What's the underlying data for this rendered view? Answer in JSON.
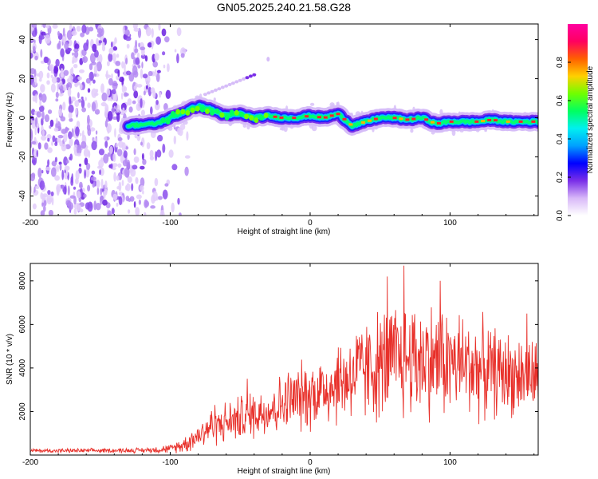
{
  "title": "GN05.2025.240.21.58.G28",
  "chart_data": [
    {
      "type": "heatmap",
      "xlabel": "Height of straight line (km)",
      "ylabel": "Frequency (Hz)",
      "xlim": [
        -200,
        163
      ],
      "ylim": [
        -50,
        48
      ],
      "xticks": [
        -200,
        -100,
        0,
        100
      ],
      "yticks": [
        -40,
        -20,
        0,
        20,
        40
      ],
      "colorbar": {
        "label": "Normalized spectral amplitude",
        "range": [
          0,
          1
        ],
        "ticks": [
          0.0,
          0.2,
          0.4,
          0.6,
          0.8
        ],
        "colors": [
          "#ffffff",
          "#d8b8f8",
          "#7a2ee8",
          "#0000ff",
          "#00a0ff",
          "#00f0f0",
          "#00ff60",
          "#70ff00",
          "#ffd000",
          "#ff6000",
          "#ff0060",
          "#ff00a0"
        ]
      },
      "ridge": {
        "description_points_x": [
          -130,
          -110,
          -100,
          -90,
          -80,
          -70,
          -60,
          -50,
          -40,
          -30,
          -20,
          -10,
          0,
          10,
          20,
          30,
          40,
          50,
          60,
          70,
          80,
          90,
          100,
          110,
          120,
          130,
          140,
          150,
          163
        ],
        "description_points_y": [
          -4,
          -3,
          0,
          3,
          6,
          4,
          1,
          2,
          0,
          1,
          0,
          0,
          1,
          0,
          2,
          -4,
          -2,
          0,
          0,
          -1,
          0,
          -3,
          -2,
          -2,
          -2,
          -1,
          -2,
          -2,
          -2
        ],
        "noise_region_x": [
          -200,
          -105
        ],
        "secondary_line": {
          "x": [
            -75,
            -40
          ],
          "y": [
            12,
            22
          ]
        }
      }
    },
    {
      "type": "line",
      "xlabel": "Height of straight line (km)",
      "ylabel": "SNR (10 * v/v)",
      "xlim": [
        -200,
        163
      ],
      "ylim": [
        0,
        8800
      ],
      "xticks": [
        -200,
        -100,
        0,
        100
      ],
      "yticks": [
        2000,
        4000,
        6000,
        8000
      ],
      "color": "#e8302a",
      "envelope": {
        "x": [
          -200,
          -160,
          -120,
          -100,
          -90,
          -80,
          -72,
          -65,
          -55,
          -45,
          -35,
          -25,
          -15,
          -5,
          5,
          15,
          25,
          35,
          45,
          55,
          65,
          75,
          85,
          95,
          105,
          115,
          125,
          135,
          145,
          155,
          163
        ],
        "mean": [
          200,
          200,
          220,
          280,
          500,
          900,
          1300,
          1400,
          1600,
          1800,
          2000,
          2200,
          2500,
          2700,
          2900,
          3200,
          3500,
          3800,
          4000,
          4200,
          4400,
          4500,
          4400,
          4300,
          4200,
          4100,
          3900,
          3800,
          3700,
          3600,
          3600
        ],
        "spread": [
          100,
          100,
          120,
          200,
          400,
          600,
          900,
          900,
          1000,
          1100,
          1200,
          1300,
          1500,
          1600,
          1700,
          1900,
          2100,
          2300,
          2500,
          2700,
          2800,
          2800,
          2700,
          2600,
          2500,
          2400,
          2200,
          2000,
          1900,
          1800,
          1700
        ]
      },
      "spikes": [
        {
          "x": 67,
          "y": 8700
        },
        {
          "x": 55,
          "y": 8200
        },
        {
          "x": 93,
          "y": 8000
        },
        {
          "x": -45,
          "y": 3500
        },
        {
          "x": -68,
          "y": 2300
        },
        {
          "x": 155,
          "y": 6500
        }
      ]
    }
  ]
}
